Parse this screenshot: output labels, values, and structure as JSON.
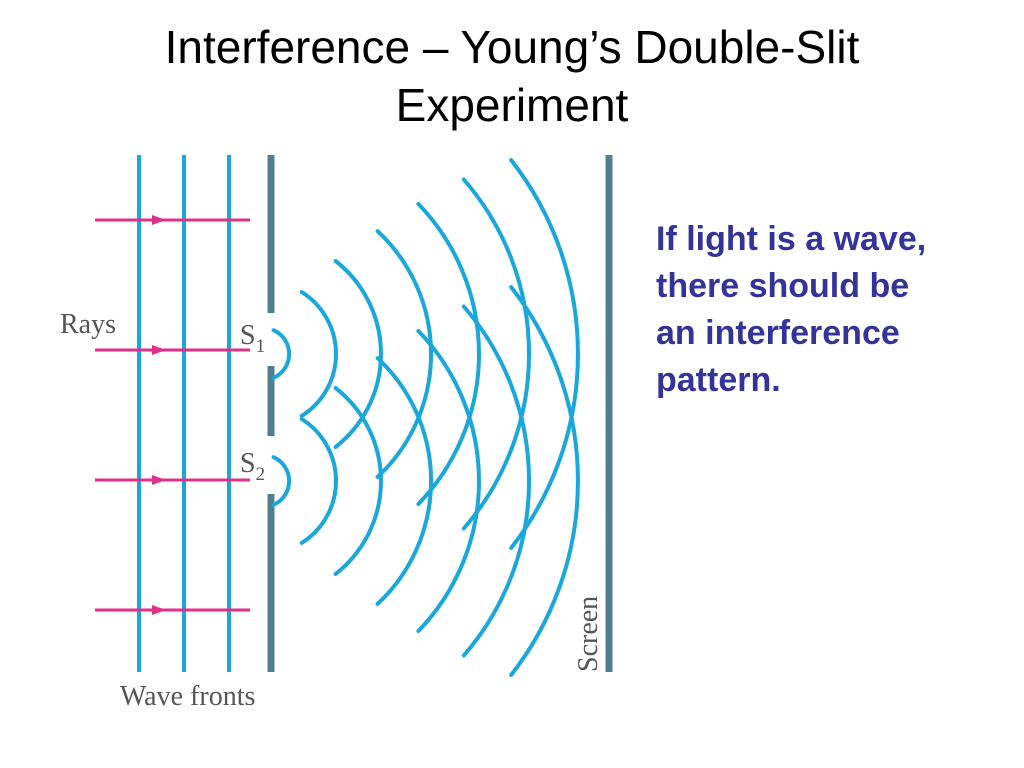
{
  "slide": {
    "title_lines": [
      "Interference – Young’s Double-Slit",
      "Experiment"
    ],
    "caption_lines": [
      "If light is a wave,",
      "there should be",
      "an interference",
      "pattern."
    ]
  },
  "diagram": {
    "labels": {
      "rays": "Rays",
      "slit1_letter": "S",
      "slit1_sub": "1",
      "slit2_letter": "S",
      "slit2_sub": "2",
      "screen": "Screen",
      "wave_fronts": "Wave fronts"
    },
    "colors": {
      "wavefront": "#1aa7dc",
      "ray": "#e0308a",
      "barrier": "#4f7f8f",
      "caption": "#33339a",
      "label": "#555555"
    }
  }
}
